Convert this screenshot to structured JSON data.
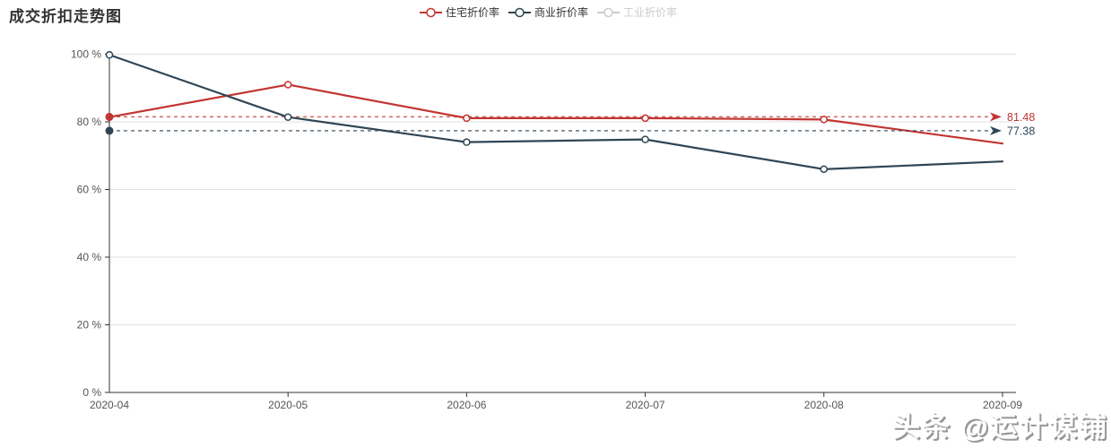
{
  "title": "成交折扣走势图",
  "legend": {
    "items": [
      {
        "label": "住宅折价率",
        "color": "#c23531",
        "enabled": true
      },
      {
        "label": "商业折价率",
        "color": "#2f4554",
        "enabled": true
      },
      {
        "label": "工业折价率",
        "color": "#cccccc",
        "enabled": false
      }
    ]
  },
  "watermark": "头条 @运计谋铺",
  "chart_data": {
    "type": "line",
    "title": "成交折扣走势图",
    "x": [
      "2020-04",
      "2020-05",
      "2020-06",
      "2020-07",
      "2020-08",
      "2020-09"
    ],
    "series": [
      {
        "name": "住宅折价率",
        "color": "#c23531",
        "values": [
          81.4,
          91.0,
          81.1,
          81.1,
          80.7,
          73.6
        ],
        "marklines": [
          {
            "value": 81.48,
            "label": "81.48"
          }
        ]
      },
      {
        "name": "商业折价率",
        "color": "#2f4554",
        "values": [
          99.8,
          81.4,
          74.0,
          74.8,
          66.0,
          68.3
        ],
        "marklines": [
          {
            "value": 77.38,
            "label": "77.38"
          }
        ]
      }
    ],
    "yticks": {
      "values": [
        0,
        20,
        40,
        60,
        80,
        100
      ],
      "labels": [
        "0 %",
        "20 %",
        "40 %",
        "60 %",
        "80 %",
        "100 %"
      ]
    },
    "ylim": [
      0,
      100
    ],
    "grid": true,
    "legend_position": "top-center",
    "xlabel": "",
    "ylabel": ""
  }
}
